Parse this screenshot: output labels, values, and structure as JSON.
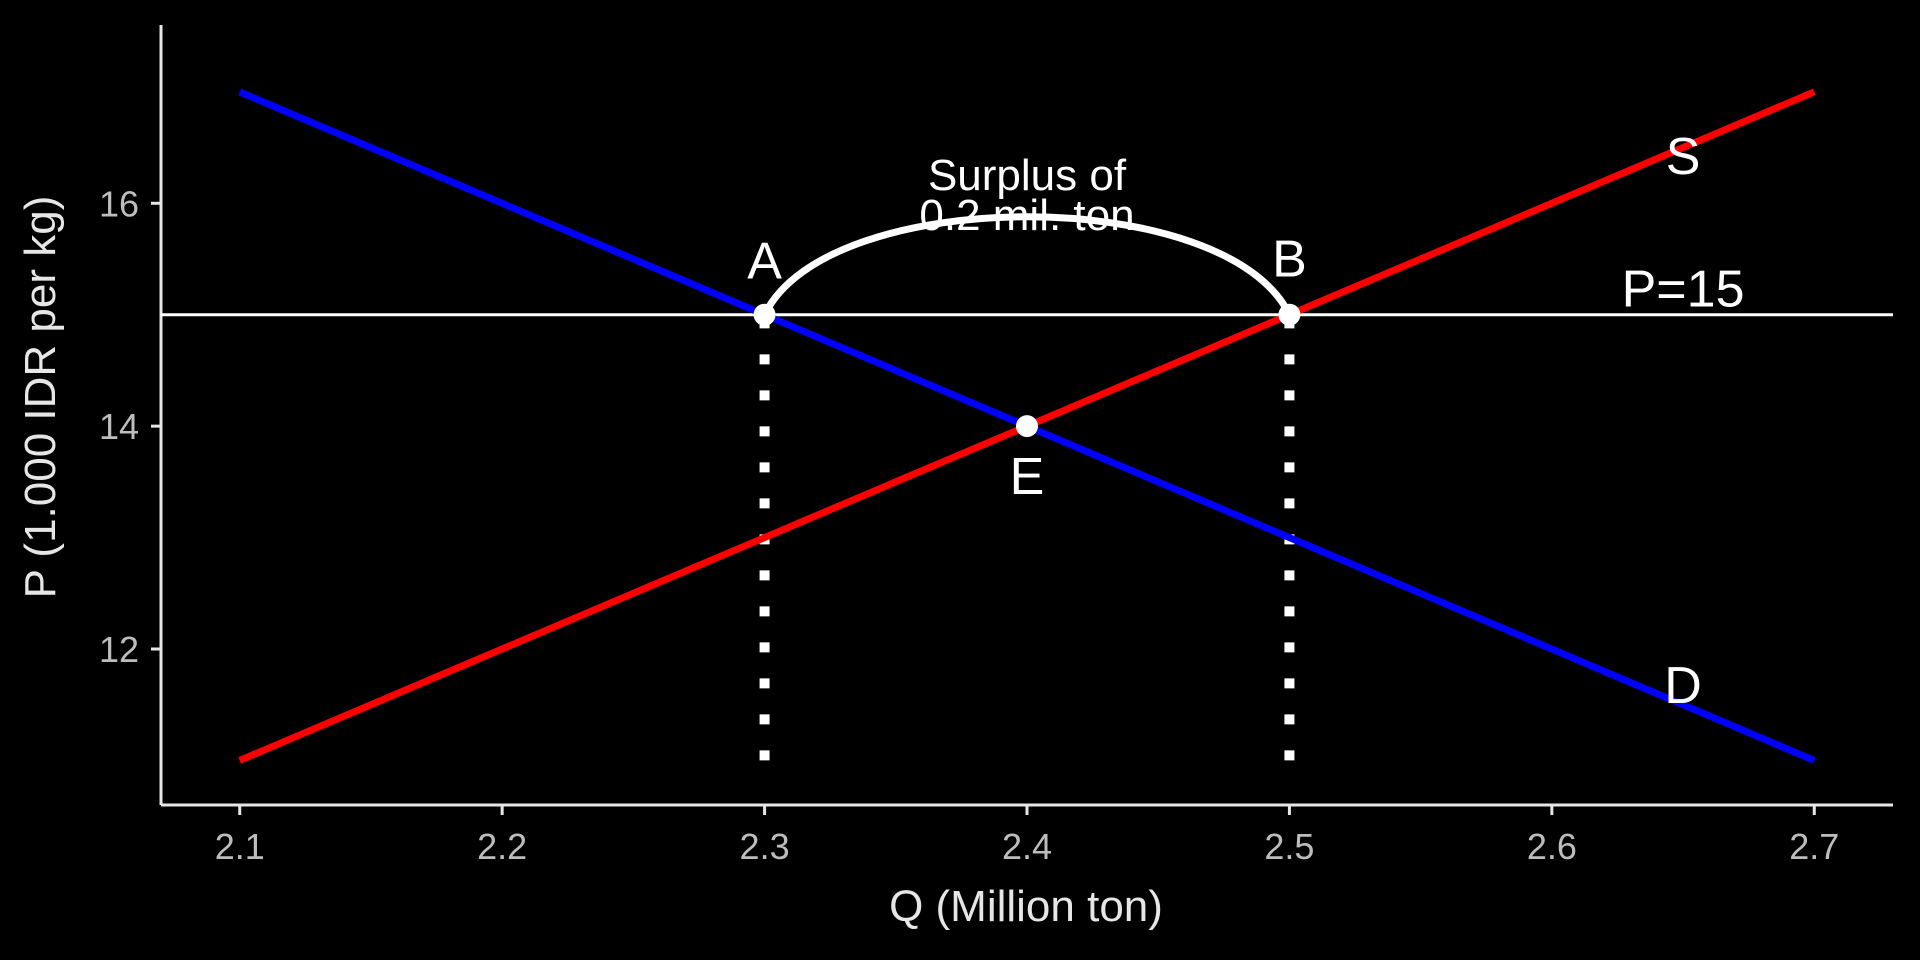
{
  "chart_data": {
    "type": "line",
    "title": "",
    "xlabel": "Q (Million ton)",
    "ylabel": "P (1.000 IDR per kg)",
    "xlim": [
      2.07,
      2.73
    ],
    "ylim": [
      10.6,
      17.6
    ],
    "x_ticks": [
      "2.1",
      "2.2",
      "2.3",
      "2.4",
      "2.5",
      "2.6",
      "2.7"
    ],
    "y_ticks": [
      "12",
      "14",
      "16"
    ],
    "grid": false,
    "legend": "none",
    "series": [
      {
        "name": "D",
        "color": "#0000FF",
        "x": [
          2.1,
          2.7
        ],
        "y": [
          17,
          11
        ]
      },
      {
        "name": "S",
        "color": "#FF0000",
        "x": [
          2.1,
          2.7
        ],
        "y": [
          11,
          17
        ]
      }
    ],
    "price_floor": {
      "label": "P=15",
      "y": 15,
      "color": "#FFFFFF"
    },
    "points": [
      {
        "label": "A",
        "x": 2.3,
        "y": 15
      },
      {
        "label": "B",
        "x": 2.5,
        "y": 15
      },
      {
        "label": "E",
        "x": 2.4,
        "y": 14
      }
    ],
    "drop_lines": [
      {
        "x": 2.3,
        "y_from": 11,
        "y_to": 15
      },
      {
        "x": 2.5,
        "y_from": 11,
        "y_to": 15
      }
    ],
    "surplus_annotation": {
      "line1": "Surplus of",
      "line2": "0.2 mil. ton",
      "from_x": 2.3,
      "to_x": 2.5,
      "peak_y": 16.1
    },
    "curve_labels": {
      "supply": "S",
      "demand": "D"
    }
  }
}
